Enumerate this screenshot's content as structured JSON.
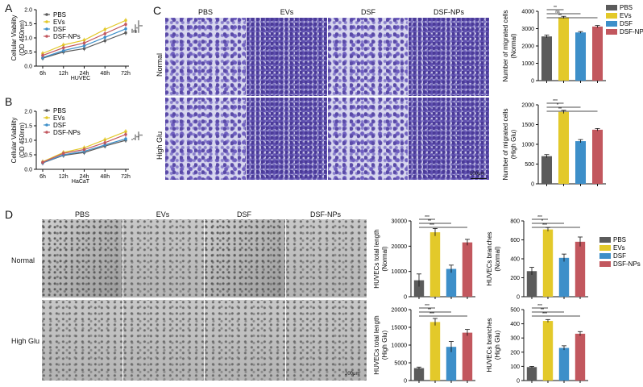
{
  "colors": {
    "PBS": "#5b5b5b",
    "EVs": "#e3c92a",
    "DSF": "#3d8fc9",
    "DSF-NPs": "#c2575e"
  },
  "panels": {
    "A": {
      "letter": "A"
    },
    "B": {
      "letter": "B"
    },
    "C": {
      "letter": "C",
      "columns": [
        "PBS",
        "EVs",
        "DSF",
        "DSF-NPs"
      ],
      "rows": [
        "Normal",
        "High Glu"
      ],
      "scale": "100μm"
    },
    "D": {
      "letter": "D",
      "columns": [
        "PBS",
        "EVs",
        "DSF",
        "DSF-NPs"
      ],
      "rows": [
        "Normal",
        "High Glu"
      ],
      "scale": "200μm"
    }
  },
  "chart_data": [
    {
      "id": "A",
      "type": "line",
      "xlabel": "HUVEC",
      "ylabel": "Cellular Viability",
      "ylabel2": "(OD 450nm)",
      "categories": [
        "6h",
        "12h",
        "24h",
        "48h",
        "72h"
      ],
      "ylim": [
        0,
        2.0
      ],
      "yticks": [
        "0.0",
        "0.5",
        "1.0",
        "1.5",
        "2.0"
      ],
      "series": [
        {
          "name": "PBS",
          "values": [
            0.28,
            0.5,
            0.62,
            0.9,
            1.18
          ]
        },
        {
          "name": "EVs",
          "values": [
            0.45,
            0.75,
            0.92,
            1.3,
            1.62
          ]
        },
        {
          "name": "DSF",
          "values": [
            0.3,
            0.55,
            0.72,
            1.02,
            1.32
          ]
        },
        {
          "name": "DSF-NPs",
          "values": [
            0.38,
            0.65,
            0.82,
            1.15,
            1.48
          ]
        }
      ],
      "sig": [
        "ns",
        "*",
        "**"
      ]
    },
    {
      "id": "B",
      "type": "line",
      "xlabel": "HaCaT",
      "ylabel": "Cellular Viability",
      "ylabel2": "(OD 450nm)",
      "categories": [
        "6h",
        "12h",
        "24h",
        "48h",
        "72h"
      ],
      "ylim": [
        0,
        2.0
      ],
      "yticks": [
        "0.0",
        "0.5",
        "1.0",
        "1.5",
        "2.0"
      ],
      "series": [
        {
          "name": "PBS",
          "values": [
            0.22,
            0.48,
            0.58,
            0.8,
            1.0
          ]
        },
        {
          "name": "EVs",
          "values": [
            0.26,
            0.58,
            0.74,
            1.02,
            1.3
          ]
        },
        {
          "name": "DSF",
          "values": [
            0.22,
            0.5,
            0.62,
            0.84,
            1.05
          ]
        },
        {
          "name": "DSF-NPs",
          "values": [
            0.24,
            0.55,
            0.68,
            0.92,
            1.2
          ]
        }
      ],
      "sig": [
        "*",
        "**",
        "**"
      ]
    },
    {
      "id": "C1",
      "type": "bar",
      "ylabel": "Number of migrated cells",
      "ylabel2": "(Normal)",
      "categories": [
        "PBS",
        "EVs",
        "DSF",
        "DSF-NPs"
      ],
      "values": [
        2550,
        3650,
        2780,
        3120
      ],
      "errors": [
        80,
        60,
        50,
        60
      ],
      "ylim": [
        0,
        4000
      ],
      "yticks": [
        "0",
        "1000",
        "2000",
        "3000",
        "4000"
      ],
      "sig": [
        "**",
        "ns",
        "**"
      ]
    },
    {
      "id": "C2",
      "type": "bar",
      "ylabel": "Number of migrated cells",
      "ylabel2": "(High Glu)",
      "categories": [
        "PBS",
        "EVs",
        "DSF",
        "DSF-NPs"
      ],
      "values": [
        700,
        1820,
        1080,
        1370
      ],
      "errors": [
        40,
        40,
        40,
        30
      ],
      "ylim": [
        0,
        2000
      ],
      "yticks": [
        "0",
        "500",
        "1000",
        "1500",
        "2000"
      ],
      "sig": [
        "***",
        "*",
        "**"
      ]
    },
    {
      "id": "D1",
      "type": "bar",
      "ylabel": "HUVECs total length",
      "ylabel2": "(Normal)",
      "categories": [
        "PBS",
        "EVs",
        "DSF",
        "DSF-NPs"
      ],
      "values": [
        6500,
        25500,
        11000,
        21500
      ],
      "errors": [
        2500,
        1500,
        1500,
        1200
      ],
      "ylim": [
        0,
        30000
      ],
      "yticks": [
        "0",
        "10000",
        "20000",
        "30000"
      ],
      "sig": [
        "***",
        "**",
        "***"
      ]
    },
    {
      "id": "D2",
      "type": "bar",
      "ylabel": "HUVECs branches",
      "ylabel2": "(Normal)",
      "categories": [
        "PBS",
        "EVs",
        "DSF",
        "DSF-NPs"
      ],
      "values": [
        270,
        710,
        410,
        580
      ],
      "errors": [
        40,
        20,
        40,
        50
      ],
      "ylim": [
        0,
        800
      ],
      "yticks": [
        "0",
        "200",
        "400",
        "600",
        "800"
      ],
      "sig": [
        "***",
        "*",
        "***"
      ]
    },
    {
      "id": "D3",
      "type": "bar",
      "ylabel": "HUVECs total length",
      "ylabel2": "(High Glu)",
      "categories": [
        "PBS",
        "EVs",
        "DSF",
        "DSF-NPs"
      ],
      "values": [
        3500,
        16500,
        9500,
        13500
      ],
      "errors": [
        300,
        1000,
        1500,
        900
      ],
      "ylim": [
        0,
        20000
      ],
      "yticks": [
        "0",
        "5000",
        "10000",
        "15000",
        "20000"
      ],
      "sig": [
        "***",
        "**",
        "***"
      ]
    },
    {
      "id": "D4",
      "type": "bar",
      "ylabel": "HUVECs branches",
      "ylabel2": "(High Glu)",
      "categories": [
        "PBS",
        "EVs",
        "DSF",
        "DSF-NPs"
      ],
      "values": [
        95,
        420,
        230,
        330
      ],
      "errors": [
        5,
        10,
        15,
        15
      ],
      "ylim": [
        0,
        500
      ],
      "yticks": [
        "0",
        "100",
        "200",
        "300",
        "400",
        "500"
      ],
      "sig": [
        "***",
        "**",
        "***"
      ]
    }
  ],
  "legends": {
    "line": [
      "PBS",
      "EVs",
      "DSF",
      "DSF-NPs"
    ],
    "bar": [
      "PBS",
      "EVs",
      "DSF",
      "DSF-NPs"
    ]
  }
}
